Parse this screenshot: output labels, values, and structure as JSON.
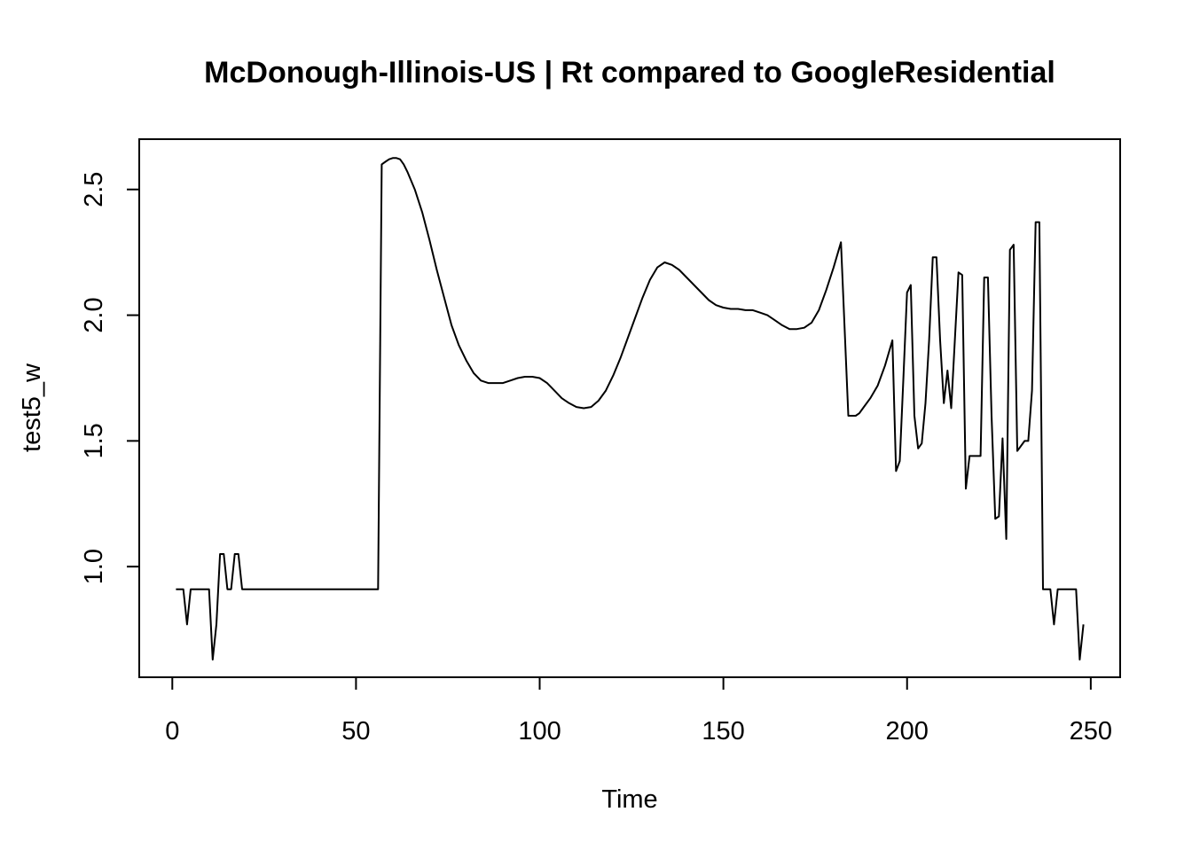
{
  "chart_data": {
    "type": "line",
    "title": "McDonough-Illinois-US | Rt compared to GoogleResidential",
    "xlabel": "Time",
    "ylabel": "test5_w",
    "xlim": [
      -9,
      258
    ],
    "ylim": [
      0.56,
      2.7
    ],
    "x_ticks": [
      0,
      50,
      100,
      150,
      200,
      250
    ],
    "x_tick_labels": [
      "0",
      "50",
      "100",
      "150",
      "200",
      "250"
    ],
    "y_ticks": [
      1.0,
      1.5,
      2.0,
      2.5
    ],
    "y_tick_labels": [
      "1.0",
      "1.5",
      "2.0",
      "2.5"
    ],
    "grid": false,
    "legend": "none",
    "line_color": "#000000",
    "series": [
      {
        "x": [
          1,
          3,
          4,
          5,
          10,
          11,
          12,
          13,
          14,
          15,
          16,
          17,
          18,
          19,
          20,
          30,
          40,
          50,
          56,
          57,
          58,
          59,
          60,
          61,
          62,
          63,
          64,
          66,
          68,
          70,
          72,
          74,
          76,
          78,
          80,
          82,
          84,
          86,
          88,
          90,
          92,
          94,
          96,
          98,
          100,
          102,
          104,
          106,
          108,
          110,
          112,
          114,
          116,
          118,
          120,
          122,
          124,
          126,
          128,
          130,
          132,
          134,
          136,
          138,
          140,
          142,
          144,
          146,
          148,
          150,
          152,
          154,
          156,
          158,
          160,
          162,
          164,
          166,
          168,
          170,
          172,
          174,
          176,
          178,
          180,
          182,
          184,
          185,
          186,
          187,
          188,
          190,
          192,
          194,
          196,
          197,
          198,
          199,
          200,
          201,
          202,
          203,
          204,
          205,
          206,
          207,
          208,
          209,
          210,
          211,
          212,
          213,
          214,
          215,
          216,
          217,
          218,
          219,
          220,
          221,
          222,
          223,
          224,
          225,
          226,
          227,
          228,
          229,
          230,
          231,
          232,
          233,
          234,
          235,
          236,
          237,
          238,
          239,
          240,
          241,
          242,
          243,
          244,
          245,
          246,
          247,
          248
        ],
        "y": [
          0.91,
          0.91,
          0.77,
          0.91,
          0.91,
          0.63,
          0.77,
          1.05,
          1.05,
          0.91,
          0.91,
          1.05,
          1.05,
          0.91,
          0.91,
          0.91,
          0.91,
          0.91,
          0.91,
          2.6,
          2.61,
          2.62,
          2.625,
          2.625,
          2.62,
          2.6,
          2.57,
          2.5,
          2.41,
          2.3,
          2.18,
          2.07,
          1.96,
          1.88,
          1.82,
          1.77,
          1.74,
          1.73,
          1.73,
          1.73,
          1.74,
          1.75,
          1.755,
          1.755,
          1.75,
          1.73,
          1.7,
          1.67,
          1.65,
          1.635,
          1.63,
          1.635,
          1.66,
          1.7,
          1.76,
          1.83,
          1.91,
          1.99,
          2.07,
          2.14,
          2.19,
          2.21,
          2.2,
          2.18,
          2.15,
          2.12,
          2.09,
          2.06,
          2.04,
          2.03,
          2.025,
          2.025,
          2.02,
          2.02,
          2.01,
          2.0,
          1.98,
          1.96,
          1.945,
          1.945,
          1.95,
          1.97,
          2.02,
          2.1,
          2.19,
          2.29,
          1.6,
          1.6,
          1.6,
          1.61,
          1.63,
          1.67,
          1.72,
          1.8,
          1.9,
          1.38,
          1.42,
          1.75,
          2.09,
          2.12,
          1.6,
          1.47,
          1.49,
          1.65,
          1.9,
          2.23,
          2.23,
          1.9,
          1.65,
          1.78,
          1.63,
          1.9,
          2.17,
          2.16,
          1.31,
          1.44,
          1.44,
          1.44,
          1.44,
          2.15,
          2.15,
          1.6,
          1.19,
          1.2,
          1.51,
          1.11,
          2.26,
          2.28,
          1.46,
          1.48,
          1.5,
          1.5,
          1.7,
          2.37,
          2.37,
          0.91,
          0.91,
          0.91,
          0.77,
          0.91,
          0.91,
          0.91,
          0.91,
          0.91,
          0.91,
          0.63,
          0.77
        ]
      }
    ]
  }
}
